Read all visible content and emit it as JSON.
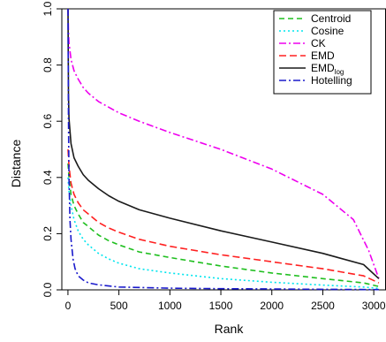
{
  "chart_data": {
    "type": "line",
    "title": "",
    "xlabel": "Rank",
    "ylabel": "Distance",
    "xlim": [
      -60,
      3120
    ],
    "ylim": [
      0,
      1.0
    ],
    "x_ticks": [
      0,
      500,
      1000,
      1500,
      2000,
      2500,
      3000
    ],
    "y_ticks": [
      0.0,
      0.2,
      0.4,
      0.6,
      0.8,
      1.0
    ],
    "x_tick_labels": [
      "0",
      "500",
      "1000",
      "1500",
      "2000",
      "2500",
      "3000"
    ],
    "y_tick_labels": [
      "0.0",
      "0.2",
      "0.4",
      "0.6",
      "0.8",
      "1.0"
    ],
    "grid": false,
    "legend_position": "top-right",
    "legend_box": true,
    "series": [
      {
        "name": "Centroid",
        "label_main": "Centroid",
        "label_sub": "",
        "color": "#1fbf1f",
        "dash": "6,4",
        "x": [
          1,
          10,
          30,
          60,
          100,
          150,
          200,
          300,
          400,
          500,
          700,
          1000,
          1500,
          2000,
          2500,
          2900,
          3050
        ],
        "y": [
          0.45,
          0.4,
          0.34,
          0.3,
          0.27,
          0.24,
          0.225,
          0.195,
          0.175,
          0.16,
          0.135,
          0.115,
          0.085,
          0.06,
          0.04,
          0.025,
          0.012
        ]
      },
      {
        "name": "Cosine",
        "label_main": "Cosine",
        "label_sub": "",
        "color": "#00e5ee",
        "dash": "2,3",
        "x": [
          1,
          10,
          30,
          60,
          100,
          150,
          200,
          300,
          400,
          500,
          700,
          1000,
          1500,
          2000,
          2500,
          2900,
          3050
        ],
        "y": [
          0.4,
          0.35,
          0.3,
          0.25,
          0.21,
          0.18,
          0.16,
          0.13,
          0.11,
          0.095,
          0.075,
          0.06,
          0.04,
          0.027,
          0.017,
          0.01,
          0.005
        ]
      },
      {
        "name": "CK",
        "label_main": "CK",
        "label_sub": "",
        "color": "#ee00ee",
        "dash": "8,3,2,3",
        "x": [
          1,
          5,
          10,
          30,
          60,
          100,
          150,
          200,
          300,
          500,
          700,
          1000,
          1500,
          2000,
          2500,
          2800,
          2950,
          3050
        ],
        "y": [
          1.0,
          0.92,
          0.88,
          0.82,
          0.78,
          0.75,
          0.72,
          0.7,
          0.67,
          0.63,
          0.6,
          0.56,
          0.5,
          0.43,
          0.34,
          0.25,
          0.14,
          0.04
        ]
      },
      {
        "name": "EMD",
        "label_main": "EMD",
        "label_sub": "",
        "color": "#ff2020",
        "dash": "8,4",
        "x": [
          1,
          10,
          30,
          60,
          100,
          150,
          200,
          300,
          400,
          500,
          700,
          1000,
          1500,
          2000,
          2500,
          2900,
          3050
        ],
        "y": [
          0.5,
          0.44,
          0.38,
          0.34,
          0.31,
          0.285,
          0.27,
          0.24,
          0.22,
          0.205,
          0.18,
          0.155,
          0.125,
          0.1,
          0.075,
          0.05,
          0.025
        ]
      },
      {
        "name": "EMDlog",
        "label_main": "EMD",
        "label_sub": "log",
        "color": "#1a1a1a",
        "dash": "",
        "x": [
          1,
          5,
          10,
          30,
          60,
          100,
          150,
          200,
          300,
          400,
          500,
          700,
          1000,
          1500,
          2000,
          2500,
          2900,
          3050
        ],
        "y": [
          1.0,
          0.7,
          0.61,
          0.52,
          0.47,
          0.44,
          0.41,
          0.39,
          0.36,
          0.335,
          0.315,
          0.285,
          0.255,
          0.21,
          0.17,
          0.13,
          0.09,
          0.04
        ]
      },
      {
        "name": "Hotelling",
        "label_main": "Hotelling",
        "label_sub": "",
        "color": "#1a1acc",
        "dash": "8,3,2,3",
        "x": [
          1,
          5,
          10,
          20,
          30,
          50,
          70,
          100,
          150,
          200,
          300,
          500,
          1000,
          1500,
          2000,
          2500,
          3000,
          3050
        ],
        "y": [
          1.0,
          0.62,
          0.4,
          0.25,
          0.18,
          0.11,
          0.075,
          0.05,
          0.035,
          0.025,
          0.018,
          0.01,
          0.006,
          0.004,
          0.003,
          0.002,
          0.001,
          0.001
        ]
      }
    ]
  }
}
